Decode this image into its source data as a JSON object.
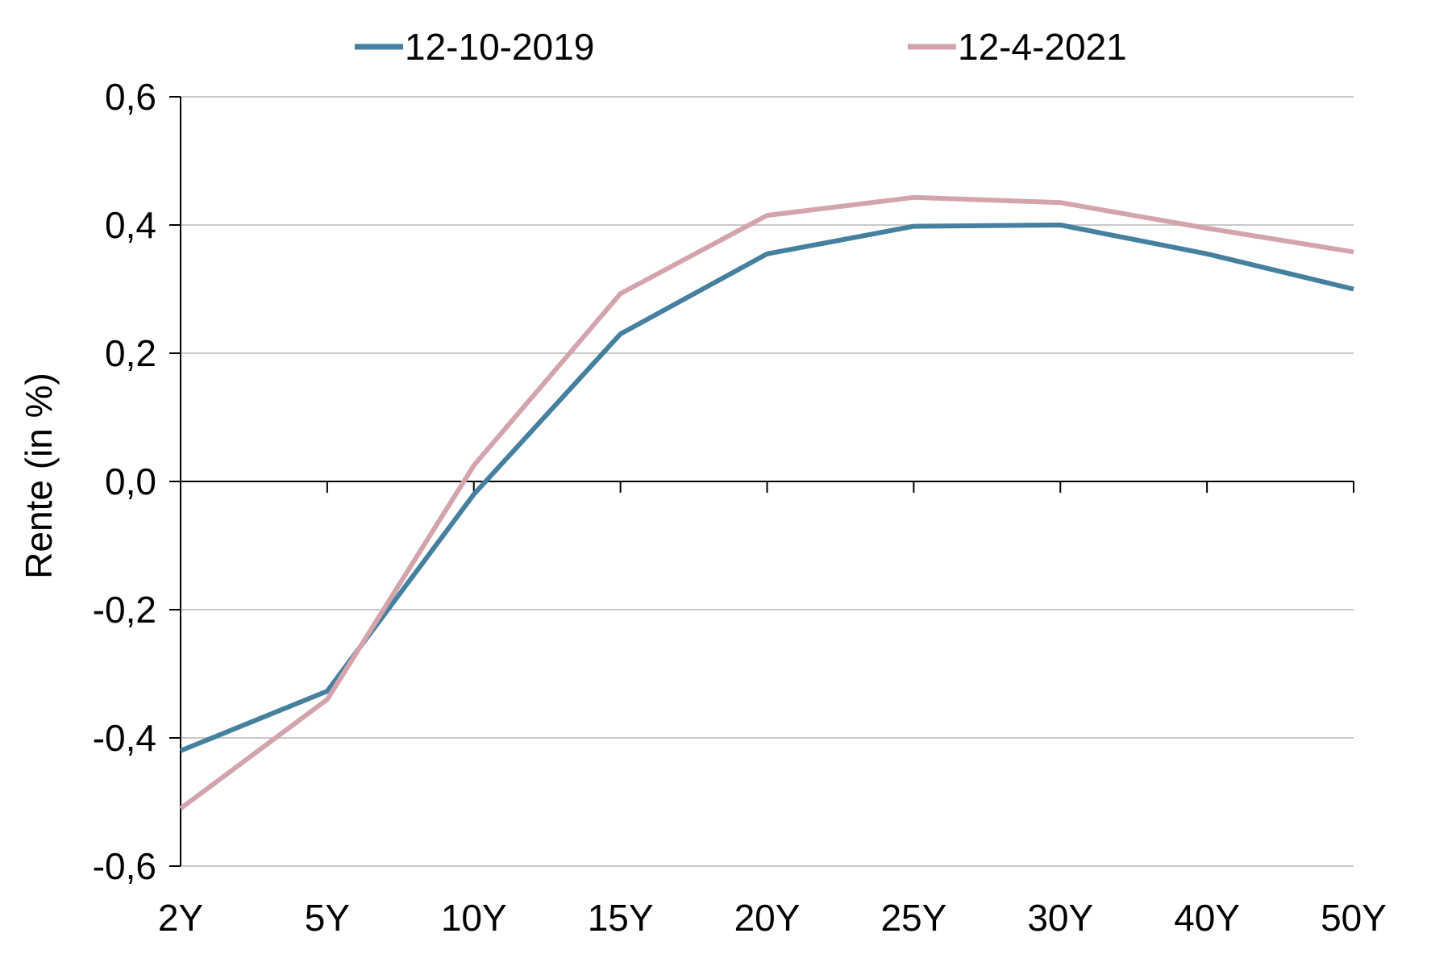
{
  "chart_data": {
    "type": "line",
    "title": "",
    "xlabel": "",
    "ylabel": "Rente (in %)",
    "categories": [
      "2Y",
      "5Y",
      "10Y",
      "15Y",
      "20Y",
      "25Y",
      "30Y",
      "40Y",
      "50Y"
    ],
    "ylim": [
      -0.6,
      0.6
    ],
    "yticks": [
      -0.6,
      -0.4,
      -0.2,
      0.0,
      0.2,
      0.4,
      0.6
    ],
    "ytick_labels": [
      "-0,6",
      "-0,4",
      "-0,2",
      "0,0",
      "0,2",
      "0,4",
      "0,6"
    ],
    "grid": true,
    "legend_position": "top",
    "series": [
      {
        "name": "12-10-2019",
        "color": "#45809f",
        "values": [
          -0.42,
          -0.327,
          -0.02,
          0.23,
          0.355,
          0.398,
          0.4,
          0.355,
          0.3
        ]
      },
      {
        "name": "12-4-2021",
        "color": "#d3a4ab",
        "values": [
          -0.51,
          -0.34,
          0.025,
          0.293,
          0.415,
          0.443,
          0.435,
          0.395,
          0.358
        ]
      }
    ]
  }
}
